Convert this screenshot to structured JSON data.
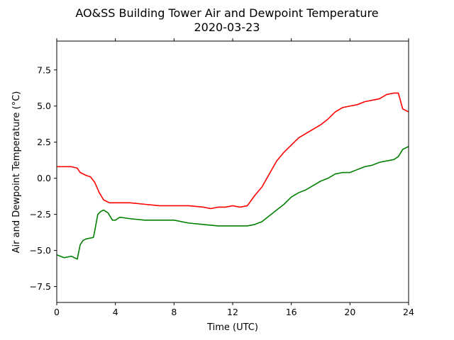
{
  "chart_data": {
    "type": "line",
    "title": "AO&SS Building Tower Air and Dewpoint Temperature",
    "subtitle": "2020-03-23",
    "xlabel": "Time (UTC)",
    "ylabel": "Air and Dewpoint Temperature (°C)",
    "xlim": [
      0,
      24
    ],
    "ylim": [
      -8.6,
      9.5
    ],
    "xticks": [
      0,
      4,
      8,
      12,
      16,
      20,
      24
    ],
    "xtick_labels": [
      "0",
      "4",
      "8",
      "12",
      "16",
      "20",
      "24"
    ],
    "yticks": [
      -7.5,
      -5.0,
      -2.5,
      0.0,
      2.5,
      5.0,
      7.5
    ],
    "ytick_labels": [
      "−7.5",
      "−5.0",
      "−2.5",
      "0.0",
      "2.5",
      "5.0",
      "7.5"
    ],
    "grid": false,
    "legend": "none",
    "series": [
      {
        "color": "#ff0000",
        "x": [
          0,
          0.5,
          1.0,
          1.4,
          1.6,
          2.0,
          2.3,
          2.6,
          2.9,
          3.2,
          3.6,
          4.0,
          5.0,
          6.0,
          7.0,
          8.0,
          9.0,
          10.0,
          10.5,
          11.0,
          11.5,
          12.0,
          12.5,
          13.0,
          13.5,
          14.0,
          14.5,
          15.0,
          15.5,
          16.0,
          16.5,
          17.0,
          17.5,
          18.0,
          18.5,
          19.0,
          19.5,
          20.0,
          20.5,
          21.0,
          21.5,
          22.0,
          22.5,
          23.0,
          23.3,
          23.6,
          24.0
        ],
        "values": [
          0.8,
          0.8,
          0.8,
          0.7,
          0.4,
          0.2,
          0.1,
          -0.3,
          -1.0,
          -1.5,
          -1.7,
          -1.7,
          -1.7,
          -1.8,
          -1.9,
          -1.9,
          -1.9,
          -2.0,
          -2.1,
          -2.0,
          -2.0,
          -1.9,
          -2.0,
          -1.9,
          -1.2,
          -0.6,
          0.3,
          1.2,
          1.8,
          2.3,
          2.8,
          3.1,
          3.4,
          3.7,
          4.1,
          4.6,
          4.9,
          5.0,
          5.1,
          5.3,
          5.4,
          5.5,
          5.8,
          5.9,
          5.9,
          4.8,
          4.6
        ]
      },
      {
        "color": "#008000",
        "x": [
          0,
          0.5,
          1.0,
          1.4,
          1.6,
          1.8,
          2.0,
          2.5,
          2.6,
          2.8,
          3.0,
          3.2,
          3.5,
          3.8,
          4.0,
          4.3,
          5.0,
          6.0,
          7.0,
          8.0,
          9.0,
          10.0,
          11.0,
          12.0,
          13.0,
          13.5,
          14.0,
          14.5,
          15.0,
          15.5,
          16.0,
          16.5,
          17.0,
          17.5,
          18.0,
          18.5,
          19.0,
          19.5,
          20.0,
          20.5,
          21.0,
          21.5,
          22.0,
          22.5,
          23.0,
          23.3,
          23.6,
          24.0
        ],
        "values": [
          -5.3,
          -5.5,
          -5.4,
          -5.6,
          -4.6,
          -4.3,
          -4.2,
          -4.1,
          -3.6,
          -2.5,
          -2.3,
          -2.2,
          -2.4,
          -2.9,
          -2.9,
          -2.7,
          -2.8,
          -2.9,
          -2.9,
          -2.9,
          -3.1,
          -3.2,
          -3.3,
          -3.3,
          -3.3,
          -3.2,
          -3.0,
          -2.6,
          -2.2,
          -1.8,
          -1.3,
          -1.0,
          -0.8,
          -0.5,
          -0.2,
          0.0,
          0.3,
          0.4,
          0.4,
          0.6,
          0.8,
          0.9,
          1.1,
          1.2,
          1.3,
          1.5,
          2.0,
          2.2
        ]
      }
    ]
  }
}
